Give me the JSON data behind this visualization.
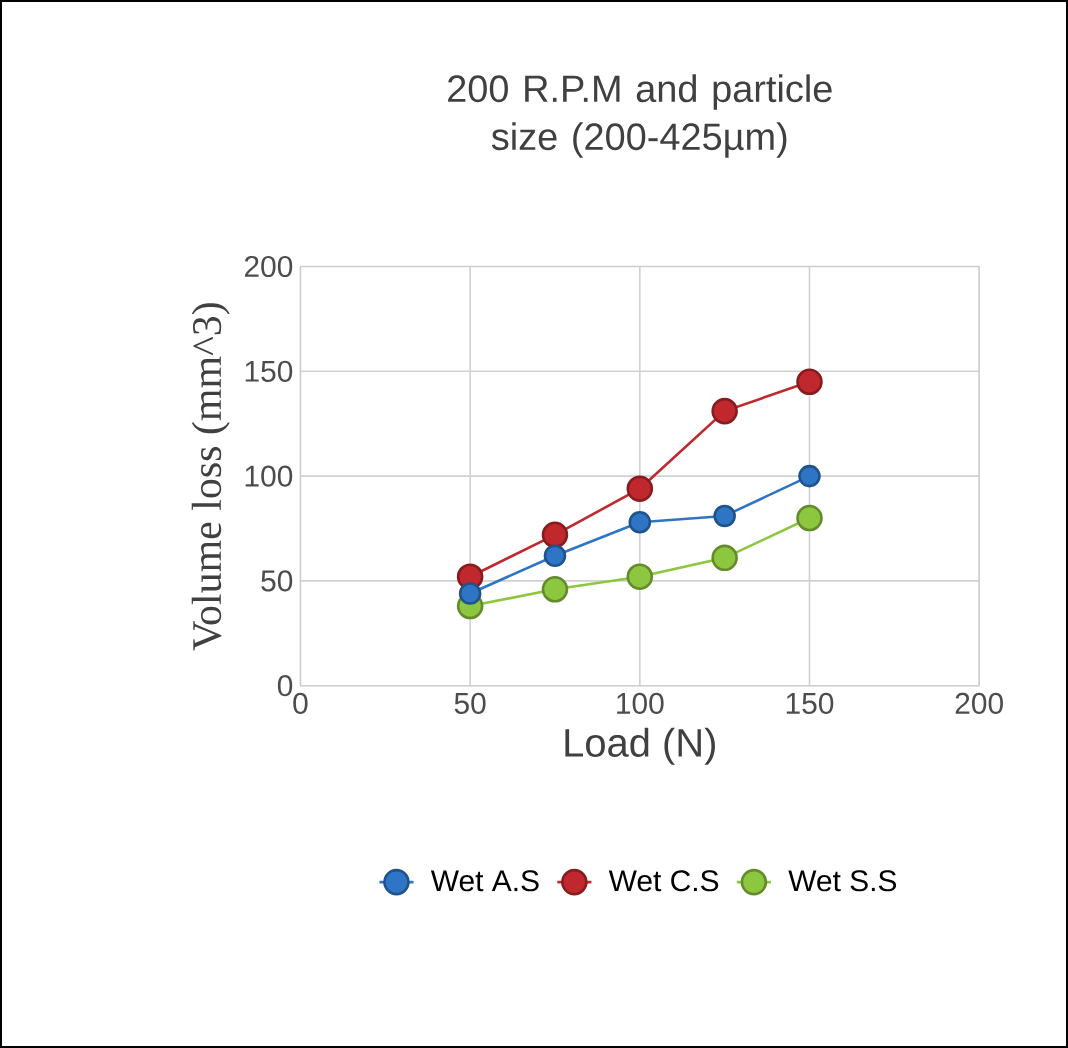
{
  "chart_data": {
    "type": "line",
    "title": "200 R.P.M and particle size (200-425µm)",
    "xlabel": "Load (N)",
    "ylabel": "Volume loss (mm^3)",
    "x": [
      50,
      75,
      100,
      125,
      150
    ],
    "series": [
      {
        "name": "Wet A.S",
        "color": "#2e75c6",
        "values": [
          44,
          62,
          78,
          81,
          100
        ]
      },
      {
        "name": "Wet C.S",
        "color": "#c0282d",
        "values": [
          52,
          72,
          94,
          131,
          145
        ]
      },
      {
        "name": "Wet S.S",
        "color": "#8dc63f",
        "values": [
          38,
          46,
          52,
          61,
          80
        ]
      }
    ],
    "xlim": [
      0,
      200
    ],
    "xticks": [
      0,
      50,
      100,
      150,
      200
    ],
    "ylim": [
      0,
      200
    ],
    "yticks": [
      0,
      50,
      100,
      150,
      200
    ],
    "grid": true,
    "legend": "bottom",
    "marker": "circle",
    "line_style": "solid"
  }
}
